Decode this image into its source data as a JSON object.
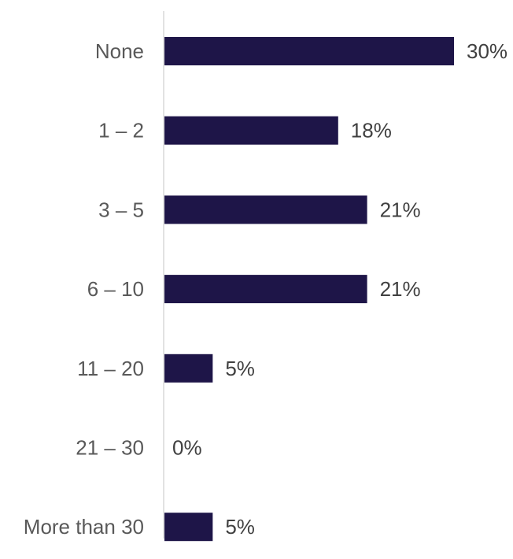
{
  "chart_data": {
    "type": "bar",
    "orientation": "horizontal",
    "categories": [
      "None",
      "1 – 2",
      "3 – 5",
      "6 – 10",
      "11 – 20",
      "21 – 30",
      "More than 30"
    ],
    "values": [
      30,
      18,
      21,
      21,
      5,
      0,
      5
    ],
    "value_labels": [
      "30%",
      "18%",
      "21%",
      "21%",
      "5%",
      "0%",
      "5%"
    ],
    "unit": "%",
    "xlim": [
      0,
      30
    ],
    "grid": false,
    "legend": "none",
    "bar_color": "#1e1548",
    "axis_color": "#d9d9d9"
  }
}
